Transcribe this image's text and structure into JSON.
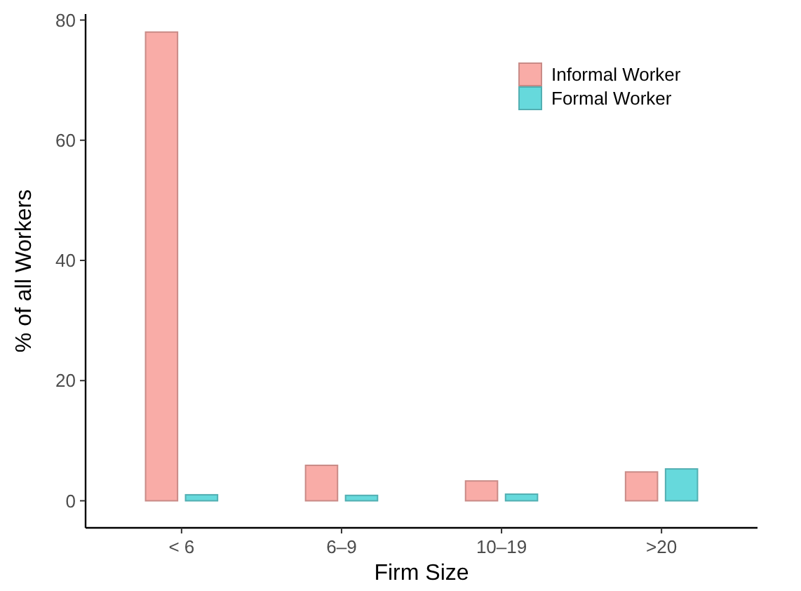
{
  "chart_data": {
    "type": "bar",
    "xlabel": "Firm Size",
    "ylabel": "% of all Workers",
    "categories": [
      "< 6",
      "6–9",
      "10–19",
      ">20"
    ],
    "series": [
      {
        "name": "Informal Worker",
        "color": "#f9aca7",
        "values": [
          78,
          5.9,
          3.3,
          4.8
        ]
      },
      {
        "name": "Formal Worker",
        "color": "#66d9dc",
        "values": [
          1,
          0.9,
          1.1,
          5.3
        ]
      }
    ],
    "ylim": [
      -4.5,
      81
    ],
    "yticks": [
      0,
      20,
      40,
      60,
      80
    ],
    "grid": false,
    "legend": "top right"
  }
}
